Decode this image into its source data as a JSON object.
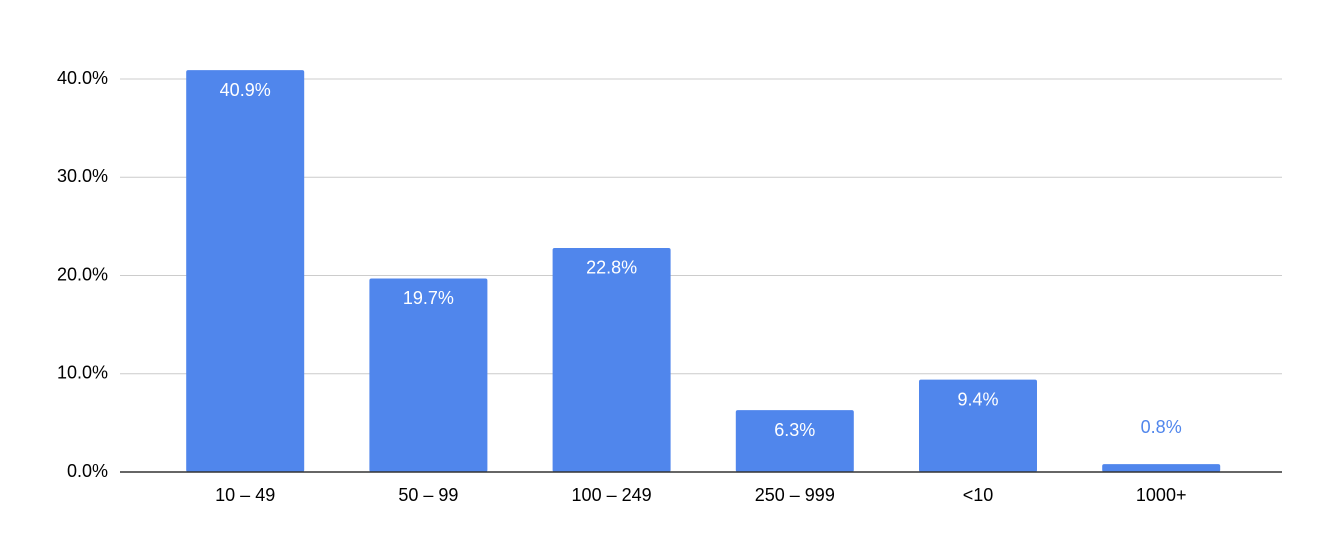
{
  "chart_data": {
    "type": "bar",
    "categories": [
      "10 – 49",
      "50 – 99",
      "100 – 249",
      "250 – 999",
      "<10",
      "1000+"
    ],
    "values": [
      40.9,
      19.7,
      22.8,
      6.3,
      9.4,
      0.8
    ],
    "value_labels": [
      "40.9%",
      "19.7%",
      "22.8%",
      "6.3%",
      "9.4%",
      "0.8%"
    ],
    "color": "#5086ec",
    "ylim": [
      0,
      45
    ],
    "yticks": [
      {
        "value": 0,
        "label": "0.0%"
      },
      {
        "value": 10,
        "label": "10.0%"
      },
      {
        "value": 20,
        "label": "20.0%"
      },
      {
        "value": 30,
        "label": "30.0%"
      },
      {
        "value": 40,
        "label": "40.0%"
      }
    ],
    "grid": true
  }
}
